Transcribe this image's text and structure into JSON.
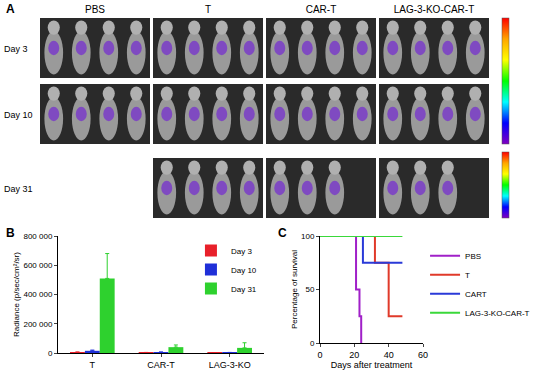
{
  "panel_a": {
    "label": "A",
    "columns": [
      "PBS",
      "T",
      "CAR-T",
      "LAG-3-KO-CAR-T"
    ],
    "rows": [
      {
        "label": "Day 3",
        "mice": [
          4,
          4,
          4,
          4
        ]
      },
      {
        "label": "Day 10",
        "mice": [
          4,
          4,
          4,
          4
        ]
      },
      {
        "label": "Day 31",
        "mice": [
          0,
          4,
          3,
          3
        ]
      }
    ]
  },
  "chart_data": [
    {
      "label": "B",
      "type": "bar",
      "categories": [
        "T",
        "CAR-T",
        "LAG-3-KO"
      ],
      "y_label": "Radiance (p/sec/cm²/sr)",
      "ylim": [
        0,
        800000
      ],
      "yticks": [
        0,
        {
          "value": 200000,
          "label": "200 000"
        },
        {
          "value": 400000,
          "label": "400 000"
        },
        {
          "value": 600000,
          "label": "600 000"
        },
        {
          "value": 800000,
          "label": "800 000"
        }
      ],
      "grid": false,
      "legend": "top-right",
      "series": [
        {
          "name": "Day 3",
          "color": "#e8202a",
          "values": [
            5000,
            3000,
            2000
          ],
          "errors": [
            2000,
            1000,
            1000
          ]
        },
        {
          "name": "Day 10",
          "color": "#1f2fd8",
          "values": [
            15000,
            5000,
            3000
          ],
          "errors": [
            5000,
            2000,
            1000
          ]
        },
        {
          "name": "Day 31",
          "color": "#2ed12e",
          "values": [
            510000,
            40000,
            35000
          ],
          "errors": [
            170000,
            15000,
            35000
          ]
        }
      ]
    },
    {
      "label": "C",
      "type": "line",
      "line_style": "step",
      "x_label": "Days after treatment",
      "y_label": "Percentage of survival",
      "xlim": [
        0,
        60
      ],
      "xticks": [
        0,
        20,
        40,
        60
      ],
      "ylim": [
        0,
        100
      ],
      "yticks": [
        0,
        50,
        100
      ],
      "grid": false,
      "legend": "right",
      "series": [
        {
          "name": "PBS",
          "color": "#a020c8",
          "x": [
            0,
            21,
            23,
            24
          ],
          "values": [
            100,
            50,
            25,
            0
          ]
        },
        {
          "name": "T",
          "color": "#e03a2a",
          "x": [
            0,
            32,
            40,
            48
          ],
          "values": [
            100,
            75,
            25,
            25
          ]
        },
        {
          "name": "CART",
          "color": "#2a3ad8",
          "x": [
            0,
            25,
            48
          ],
          "values": [
            100,
            75,
            75
          ]
        },
        {
          "name": "LAG-3-KO-CAR-T",
          "color": "#3ad83a",
          "x": [
            0,
            48
          ],
          "values": [
            100,
            100
          ]
        }
      ]
    }
  ]
}
